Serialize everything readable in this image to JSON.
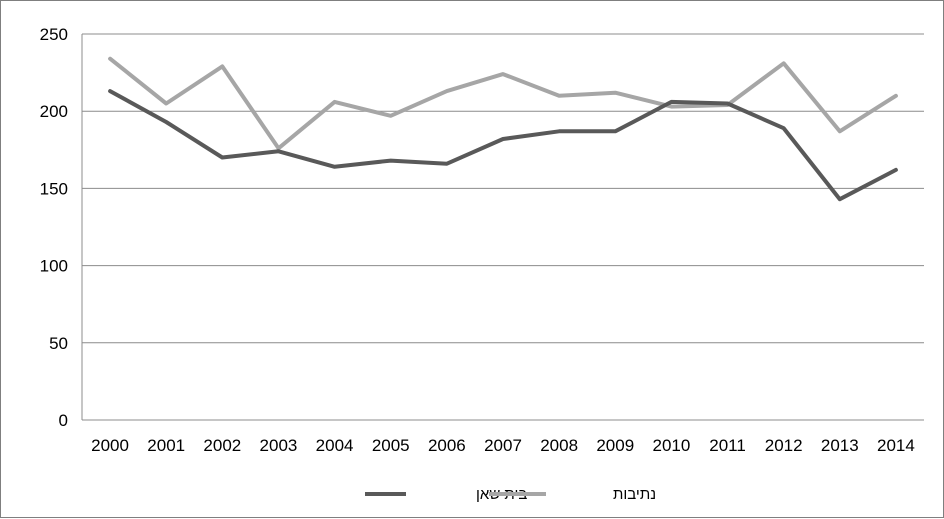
{
  "chart_data": {
    "type": "line",
    "title": "",
    "xlabel": "",
    "ylabel": "",
    "categories": [
      "2000",
      "2001",
      "2002",
      "2003",
      "2004",
      "2005",
      "2006",
      "2007",
      "2008",
      "2009",
      "2010",
      "2011",
      "2012",
      "2013",
      "2014"
    ],
    "ylim": [
      0,
      250
    ],
    "yticks": [
      "0",
      "50",
      "100",
      "150",
      "200",
      "250"
    ],
    "grid": "horizontal",
    "legend_position": "bottom",
    "series": [
      {
        "name": "בית שאן",
        "color": "#595959",
        "values": [
          213,
          193,
          170,
          174,
          164,
          168,
          166,
          182,
          187,
          187,
          206,
          205,
          189,
          143,
          162
        ]
      },
      {
        "name": "נתיבות",
        "color": "#a6a6a6",
        "values": [
          234,
          205,
          229,
          176,
          206,
          197,
          213,
          224,
          210,
          212,
          203,
          204,
          231,
          187,
          210
        ]
      }
    ]
  }
}
